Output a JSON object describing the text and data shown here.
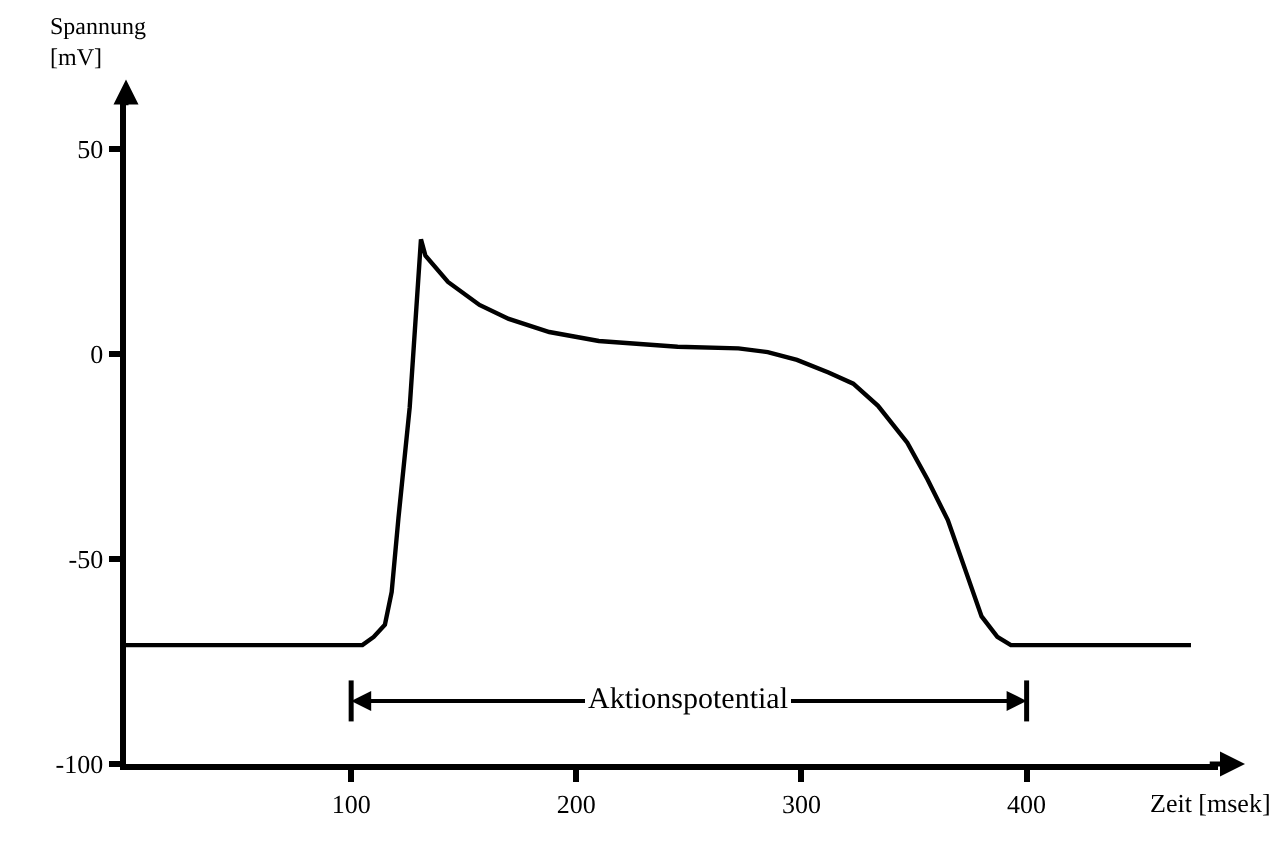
{
  "chart_data": {
    "type": "line",
    "xlabel": "Zeit [msek]",
    "ylabel": "Spannung\n[mV]",
    "xlim": [
      0,
      485
    ],
    "ylim": [
      -100,
      62
    ],
    "xticks": [
      100,
      200,
      300,
      400
    ],
    "yticks": [
      -100,
      -50,
      0,
      50
    ],
    "marker": "none",
    "line_style": "solid",
    "series": [
      {
        "color": "#000000",
        "x": [
          0,
          105,
          110,
          115,
          118,
          121,
          126,
          131,
          133,
          143,
          157,
          170,
          188,
          210,
          245,
          272,
          285,
          298,
          312,
          323,
          334,
          347,
          356,
          365,
          373,
          380,
          387,
          393,
          473
        ],
        "values": [
          -71,
          -71,
          -69,
          -66,
          -58,
          -40,
          -13,
          28,
          24,
          17.6,
          12,
          8.6,
          5.4,
          3.2,
          1.8,
          1.4,
          0.5,
          -1.4,
          -4.5,
          -7.2,
          -12.6,
          -21.6,
          -30.6,
          -40.5,
          -53,
          -64,
          -69,
          -71,
          -71
        ]
      }
    ],
    "annotations": [
      "Aktionspotential"
    ]
  }
}
